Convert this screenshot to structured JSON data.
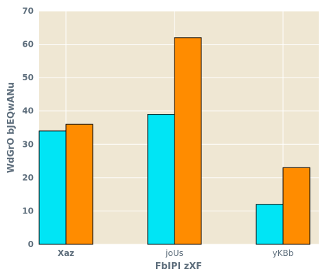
{
  "chart_data": {
    "type": "bar",
    "categories": [
      "Xaz",
      "joUs",
      "yKBb"
    ],
    "series": [
      {
        "color": "#00e5f5",
        "values": [
          34,
          39,
          12
        ]
      },
      {
        "color": "#ff8c00",
        "values": [
          36,
          62,
          23
        ]
      }
    ],
    "xlabel": "FbIPI zXF",
    "ylabel": "WdGrO bJEQwANu",
    "ylim": [
      0,
      70
    ],
    "yticks": [
      0,
      10,
      20,
      30,
      40,
      50,
      60,
      70
    ],
    "grid": true,
    "plot_background": "#efe7d3",
    "grid_color": "#ffffff"
  }
}
